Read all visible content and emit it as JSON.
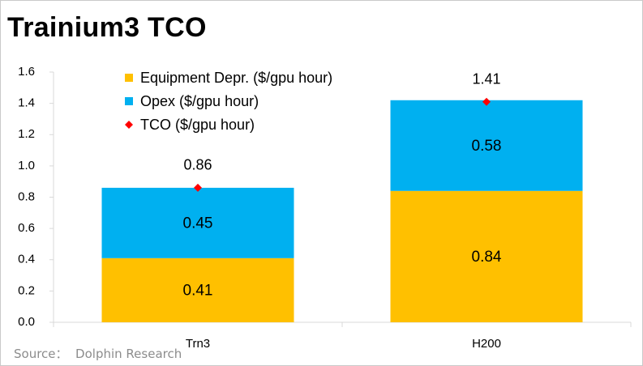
{
  "title": "Trainium3  TCO",
  "source": "Source：  Dolphin Research",
  "colors": {
    "equipment": "#FFC000",
    "opex": "#00B0F0",
    "tco_marker": "#FF0000",
    "axis": "#d9d9d9",
    "text": "#000000"
  },
  "chart_data": {
    "type": "bar",
    "stacked": true,
    "categories": [
      "Trn3",
      "H200"
    ],
    "series": [
      {
        "name": "Equipment Depr. ($/gpu hour)",
        "values": [
          0.41,
          0.84
        ],
        "labels": [
          "0.41",
          "0.84"
        ]
      },
      {
        "name": "Opex ($/gpu hour)",
        "values": [
          0.45,
          0.58
        ],
        "labels": [
          "0.45",
          "0.58"
        ]
      }
    ],
    "tco": {
      "name": "TCO ($/gpu hour)",
      "values": [
        0.86,
        1.41
      ],
      "labels": [
        "0.86",
        "1.41"
      ]
    },
    "ylim": [
      0,
      1.6
    ],
    "yticks": [
      "0.0",
      "0.2",
      "0.4",
      "0.6",
      "0.8",
      "1.0",
      "1.2",
      "1.4",
      "1.6"
    ],
    "grid": false,
    "legend": "top-left"
  }
}
